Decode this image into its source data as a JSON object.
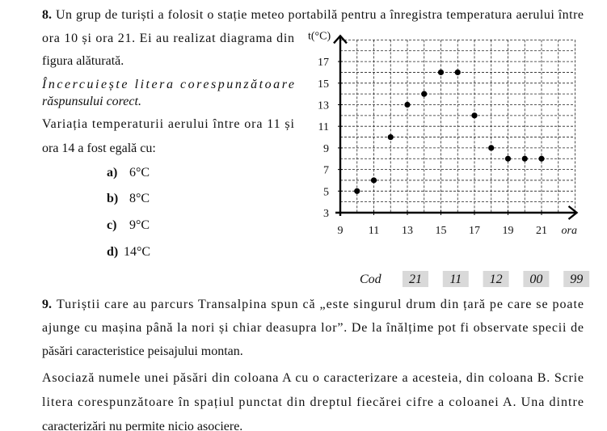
{
  "problem8": {
    "number": "8.",
    "lines": [
      "Un grup de turiști a folosit o stație meteo portabilă pentru a înregistra temperatura aerului între",
      "ora 10 și ora 21. Ei au realizat diagrama din",
      "figura alăturată."
    ],
    "instruction": [
      "Încercuiește litera corespunzătoare",
      "răspunsului corect."
    ],
    "question": [
      "Variația temperaturii aerului între ora 11 și",
      "ora 14 a fost egală cu:"
    ],
    "options": [
      {
        "letter": "a)",
        "text": "6°C"
      },
      {
        "letter": "b)",
        "text": "8°C"
      },
      {
        "letter": "c)",
        "text": "9°C"
      },
      {
        "letter": "d)",
        "text": "14°C"
      }
    ],
    "chart": {
      "type": "scatter",
      "y_label": "t(°C)",
      "x_label": "ora",
      "x": [
        10,
        11,
        12,
        13,
        14,
        15,
        16,
        17,
        18,
        19,
        20,
        21
      ],
      "values": [
        5,
        6,
        10,
        13,
        14,
        16,
        16,
        12,
        9,
        8,
        8,
        8
      ],
      "xlim": [
        9,
        23
      ],
      "ylim": [
        3,
        19
      ],
      "xticks": [
        9,
        11,
        13,
        15,
        17,
        19,
        21
      ],
      "yticks": [
        3,
        5,
        7,
        9,
        11,
        13,
        15,
        17
      ],
      "grid": true,
      "color": "#000000"
    },
    "code": {
      "label": "Cod",
      "values": [
        "21",
        "11",
        "12",
        "00",
        "99"
      ]
    }
  },
  "problem9": {
    "number": "9.",
    "lines": [
      "Turiștii care au parcurs Transalpina spun că „este singurul drum din țară pe care se poate",
      "ajunge cu mașina până la nori și chiar deasupra lor”. De la înălțime pot fi observate specii de",
      "păsări caracteristice peisajului montan."
    ],
    "paragraph": [
      "Asociază numele unei păsări din coloana A cu o caracterizare a acesteia, din coloana B. Scrie",
      "litera corespunzătoare în spațiul punctat din dreptul fiecărei cifre a coloanei A. Una dintre",
      "caracterizări nu permite nicio asociere."
    ]
  }
}
